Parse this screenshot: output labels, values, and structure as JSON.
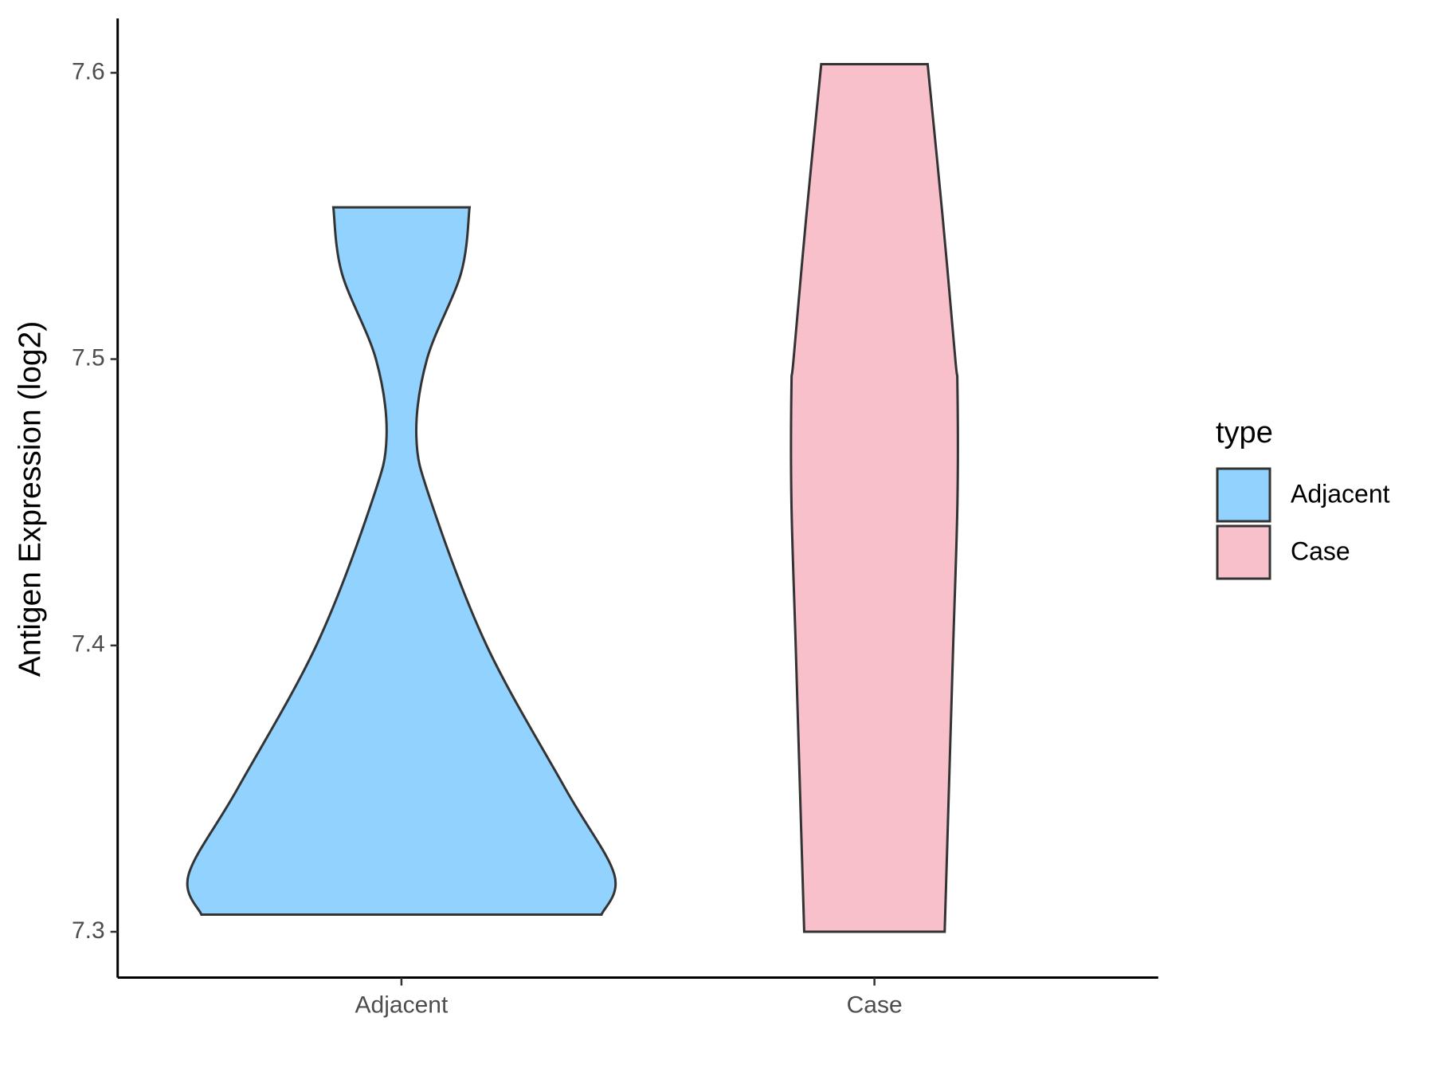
{
  "chart_data": {
    "type": "violin",
    "y_label": "Antigen Expression (log2)",
    "categories": [
      "Adjacent",
      "Case"
    ],
    "series": [
      {
        "name": "Adjacent",
        "color": "#92d2fe",
        "values": [
          7.306,
          7.32,
          7.35,
          7.4,
          7.45,
          7.473,
          7.5,
          7.53,
          7.553
        ],
        "widths": [
          0.94,
          1.0,
          0.77,
          0.4,
          0.14,
          0.07,
          0.12,
          0.28,
          0.32
        ]
      },
      {
        "name": "Case",
        "color": "#f7c0cb",
        "values": [
          7.3,
          7.35,
          7.4,
          7.45,
          7.49,
          7.5,
          7.55,
          7.603
        ],
        "widths": [
          0.33,
          0.35,
          0.37,
          0.39,
          0.39,
          0.38,
          0.32,
          0.25
        ]
      }
    ],
    "ylim": [
      7.284,
      7.619
    ],
    "yticks": [
      7.3,
      7.4,
      7.5,
      7.6
    ],
    "legend_title": "type",
    "legend_position": "right"
  }
}
